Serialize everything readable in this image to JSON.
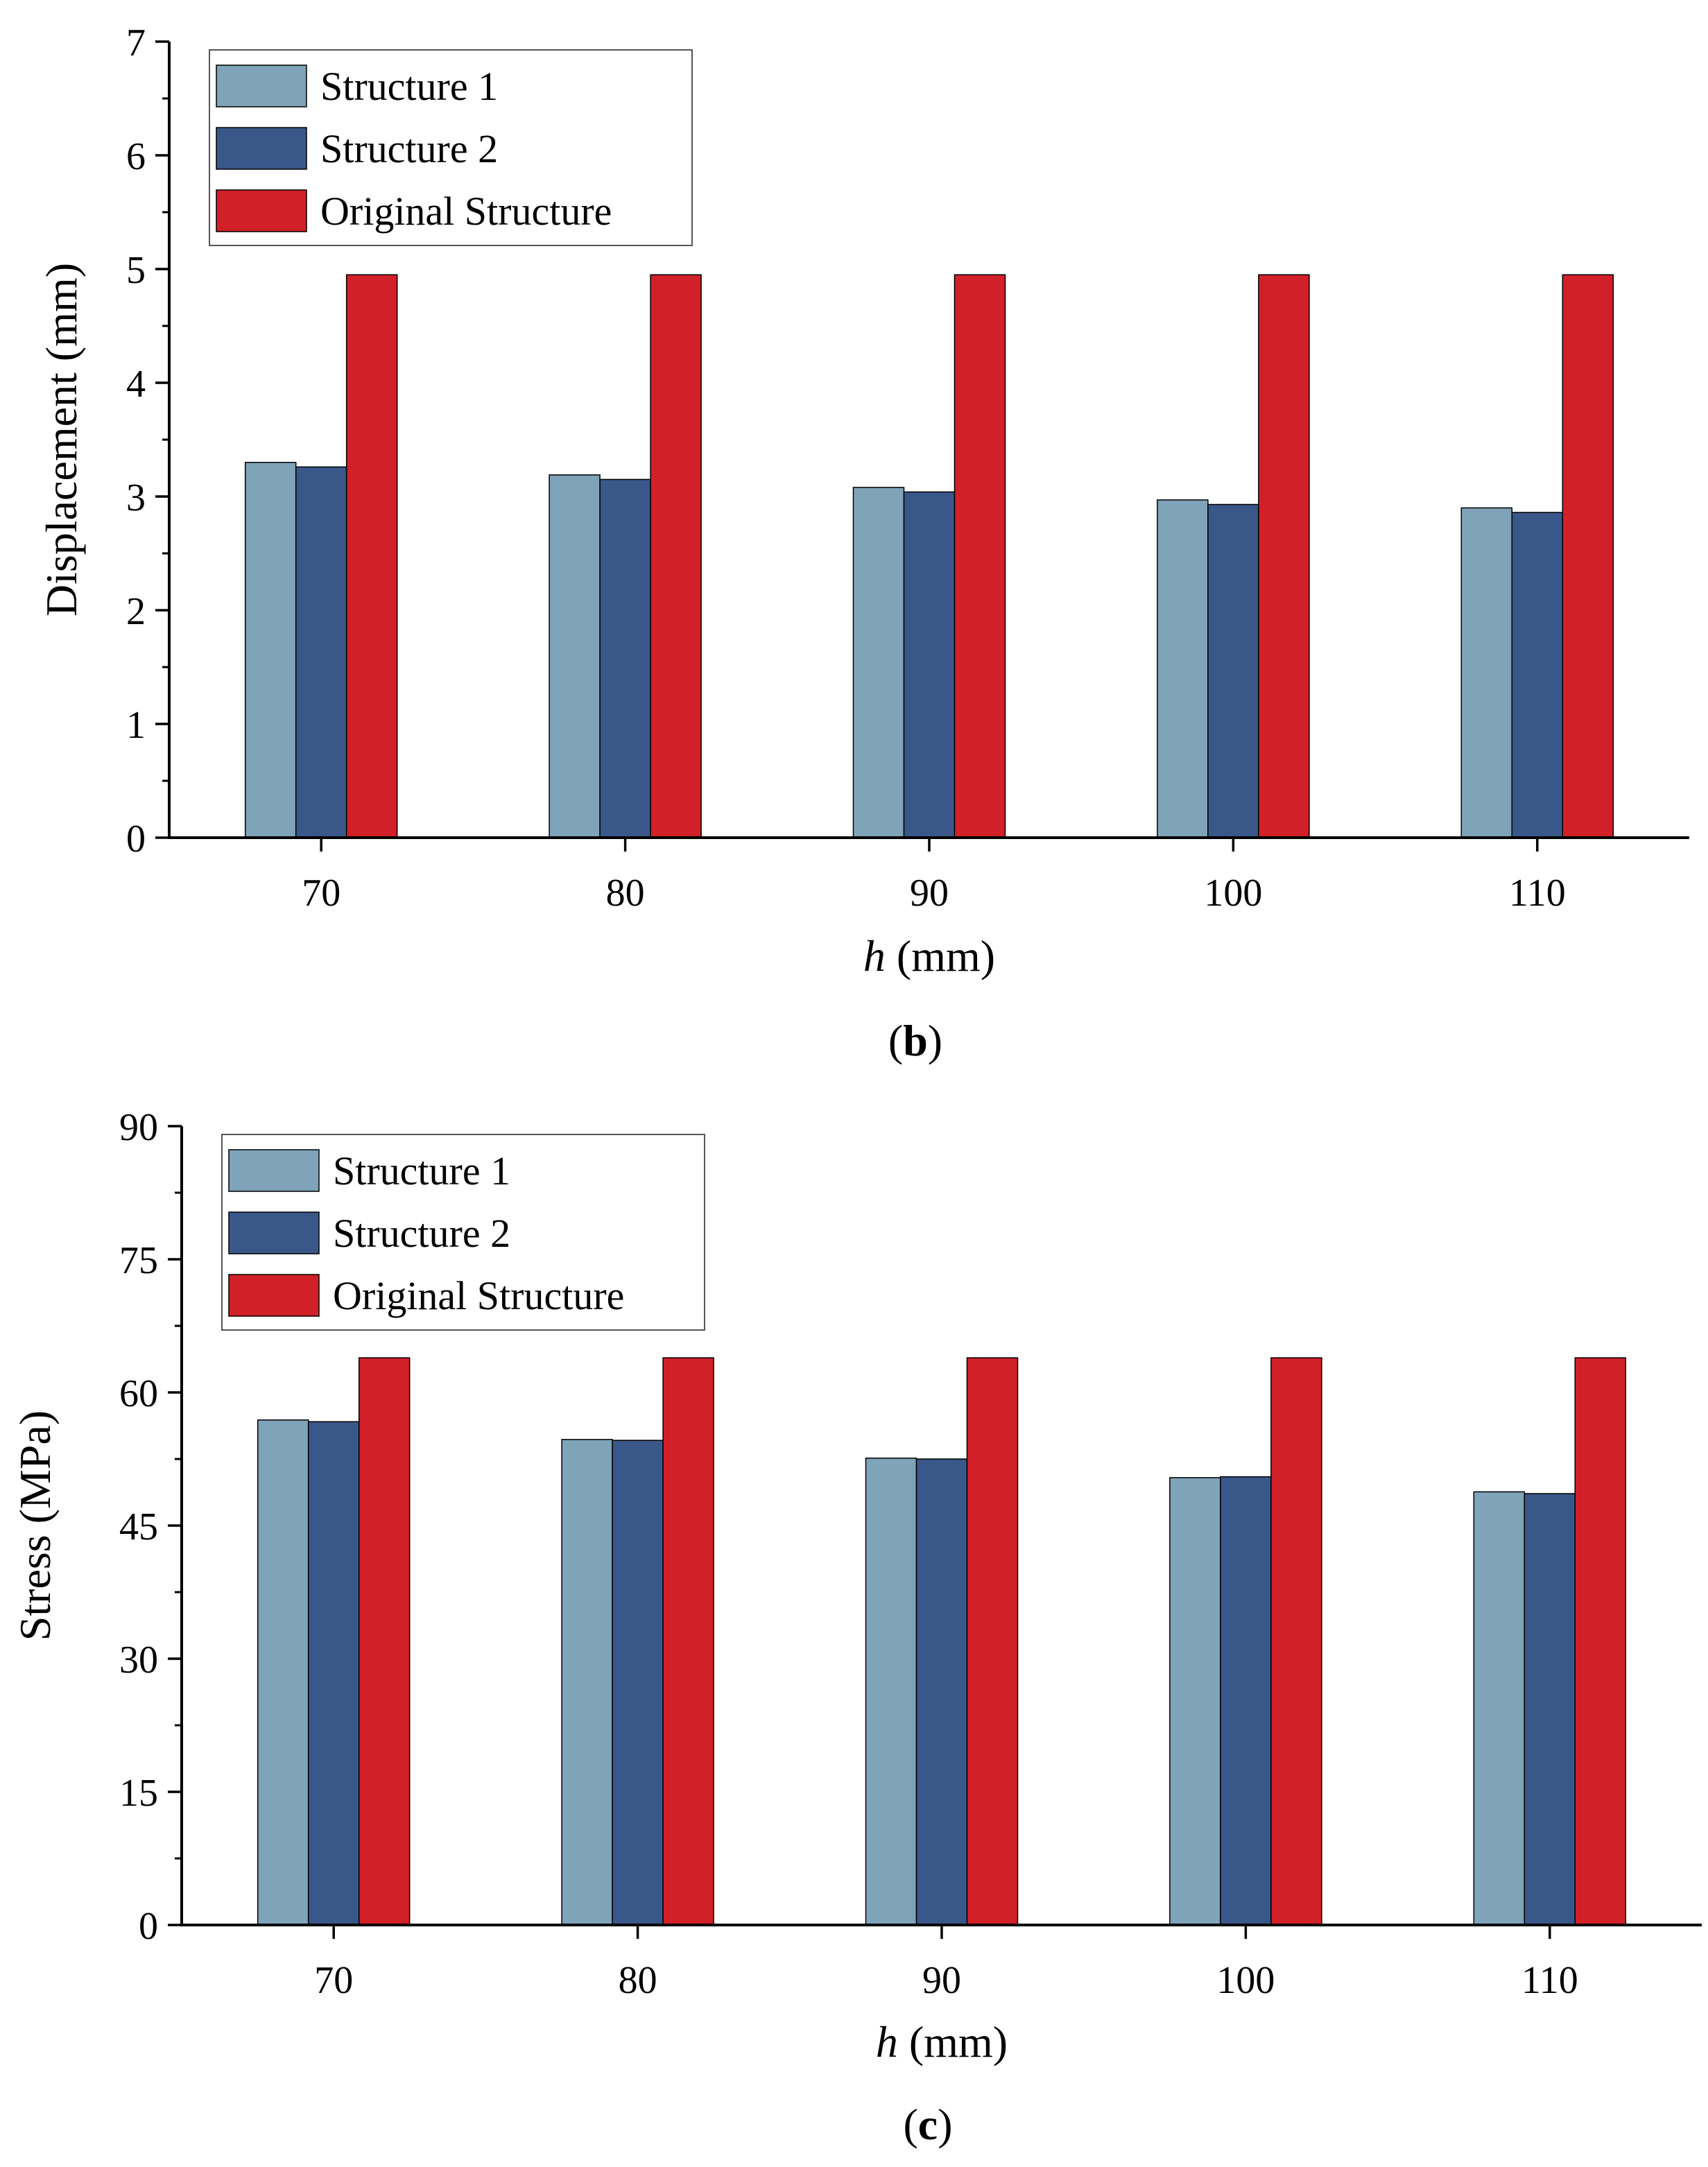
{
  "chart_data": [
    {
      "type": "bar",
      "panel_label": "b",
      "categories": [
        "70",
        "80",
        "90",
        "100",
        "110"
      ],
      "series": [
        {
          "name": "Structure 1",
          "color": "#7fa3b8",
          "values": [
            3.3,
            3.19,
            3.08,
            2.97,
            2.9
          ]
        },
        {
          "name": "Structure 2",
          "color": "#3a5789",
          "values": [
            3.26,
            3.15,
            3.04,
            2.93,
            2.86
          ]
        },
        {
          "name": "Original Structure",
          "color": "#d12028",
          "values": [
            4.95,
            4.95,
            4.95,
            4.95,
            4.95
          ]
        }
      ],
      "xlabel_italic": "h",
      "xlabel_rest": " (mm)",
      "ylabel": "Displacement (mm)",
      "ylim": [
        0,
        7
      ],
      "yticks": [
        0,
        1,
        2,
        3,
        4,
        5,
        6,
        7
      ],
      "yminor_step": 0.5,
      "legend_position": "top-left"
    },
    {
      "type": "bar",
      "panel_label": "c",
      "categories": [
        "70",
        "80",
        "90",
        "100",
        "110"
      ],
      "series": [
        {
          "name": "Structure 1",
          "color": "#7fa3b8",
          "values": [
            56.9,
            54.7,
            52.6,
            50.4,
            48.8
          ]
        },
        {
          "name": "Structure 2",
          "color": "#3a5789",
          "values": [
            56.7,
            54.6,
            52.5,
            50.5,
            48.6
          ]
        },
        {
          "name": "Original Structure",
          "color": "#d12028",
          "values": [
            63.9,
            63.9,
            63.9,
            63.9,
            63.9
          ]
        }
      ],
      "xlabel_italic": "h",
      "xlabel_rest": " (mm)",
      "ylabel": "Stress (MPa)",
      "ylim": [
        0,
        90
      ],
      "yticks": [
        0,
        15,
        30,
        45,
        60,
        75,
        90
      ],
      "yminor_step": 7.5,
      "legend_position": "top-left"
    }
  ]
}
